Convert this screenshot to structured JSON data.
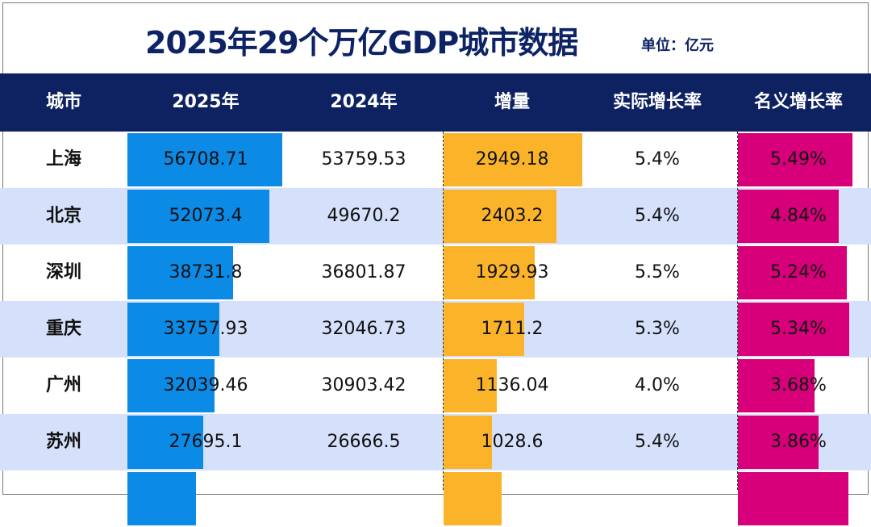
{
  "title": "2025年29个万亿GDP城市数据",
  "unit": "单位：亿元",
  "headers": [
    "城市",
    "2025年",
    "2024年",
    "增量",
    "实际增长率",
    "名义增长率"
  ],
  "colors": {
    "header_bg": "#0e2262",
    "bar_2025": "#0b8ae6",
    "bar_increase": "#fbb42a",
    "bar_nominal": "#d7007a",
    "stripe": "#d5e1fb"
  },
  "rows": [
    {
      "city": "上海",
      "gdp2025": "56708.71",
      "gdp2024": "53759.53",
      "increase": "2949.18",
      "real": "5.4%",
      "nominal": "5.49%",
      "v2025": 56708.71,
      "vinc": 2949.18,
      "vnom": 5.49
    },
    {
      "city": "北京",
      "gdp2025": "52073.4",
      "gdp2024": "49670.2",
      "increase": "2403.2",
      "real": "5.4%",
      "nominal": "4.84%",
      "v2025": 52073.4,
      "vinc": 2403.2,
      "vnom": 4.84
    },
    {
      "city": "深圳",
      "gdp2025": "38731.8",
      "gdp2024": "36801.87",
      "increase": "1929.93",
      "real": "5.5%",
      "nominal": "5.24%",
      "v2025": 38731.8,
      "vinc": 1929.93,
      "vnom": 5.24
    },
    {
      "city": "重庆",
      "gdp2025": "33757.93",
      "gdp2024": "32046.73",
      "increase": "1711.2",
      "real": "5.3%",
      "nominal": "5.34%",
      "v2025": 33757.93,
      "vinc": 1711.2,
      "vnom": 5.34
    },
    {
      "city": "广州",
      "gdp2025": "32039.46",
      "gdp2024": "30903.42",
      "increase": "1136.04",
      "real": "4.0%",
      "nominal": "3.68%",
      "v2025": 32039.46,
      "vinc": 1136.04,
      "vnom": 3.68
    },
    {
      "city": "苏州",
      "gdp2025": "27695.1",
      "gdp2024": "26666.5",
      "increase": "1028.6",
      "real": "5.4%",
      "nominal": "3.86%",
      "v2025": 27695.1,
      "vinc": 1028.6,
      "vnom": 3.86
    },
    {
      "v2025": 25000,
      "vinc": 1240,
      "vnom": 5.3
    }
  ]
}
